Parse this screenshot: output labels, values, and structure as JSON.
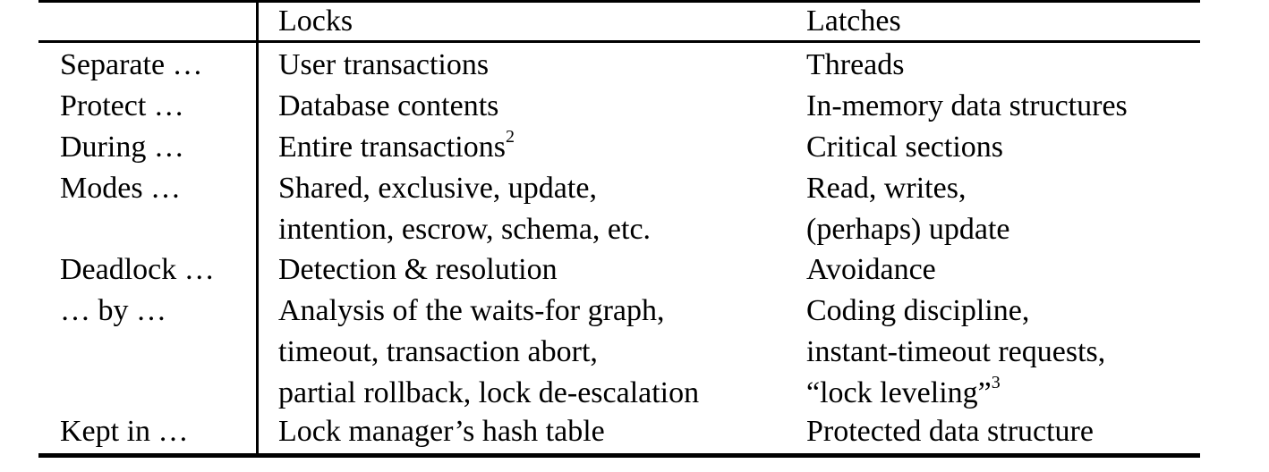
{
  "table": {
    "header": {
      "col0": "",
      "col1": "Locks",
      "col2": "Latches"
    },
    "rows": [
      {
        "label": "Separate …",
        "locks": [
          "User transactions"
        ],
        "latches": [
          "Threads"
        ]
      },
      {
        "label": "Protect …",
        "locks": [
          "Database contents"
        ],
        "latches": [
          "In-memory data structures"
        ]
      },
      {
        "label": "During …",
        "locks": [
          "Entire transactions"
        ],
        "locks_sup": "2",
        "latches": [
          "Critical sections"
        ]
      },
      {
        "label": "Modes …",
        "locks": [
          "Shared, exclusive, update,",
          "intention, escrow, schema, etc."
        ],
        "latches": [
          "Read, writes,",
          "(perhaps) update"
        ]
      },
      {
        "label": "Deadlock …",
        "locks": [
          "Detection & resolution"
        ],
        "latches": [
          "Avoidance"
        ]
      },
      {
        "label": "… by …",
        "locks": [
          "Analysis of the waits-for graph,",
          "timeout, transaction abort,",
          "partial rollback, lock de-escalation"
        ],
        "latches": [
          "Coding discipline,",
          "instant-timeout requests,",
          "“lock leveling”"
        ],
        "latches_sup": "3"
      },
      {
        "label": "Kept in …",
        "locks": [
          "Lock manager’s hash table"
        ],
        "latches": [
          "Protected data structure"
        ]
      }
    ]
  }
}
